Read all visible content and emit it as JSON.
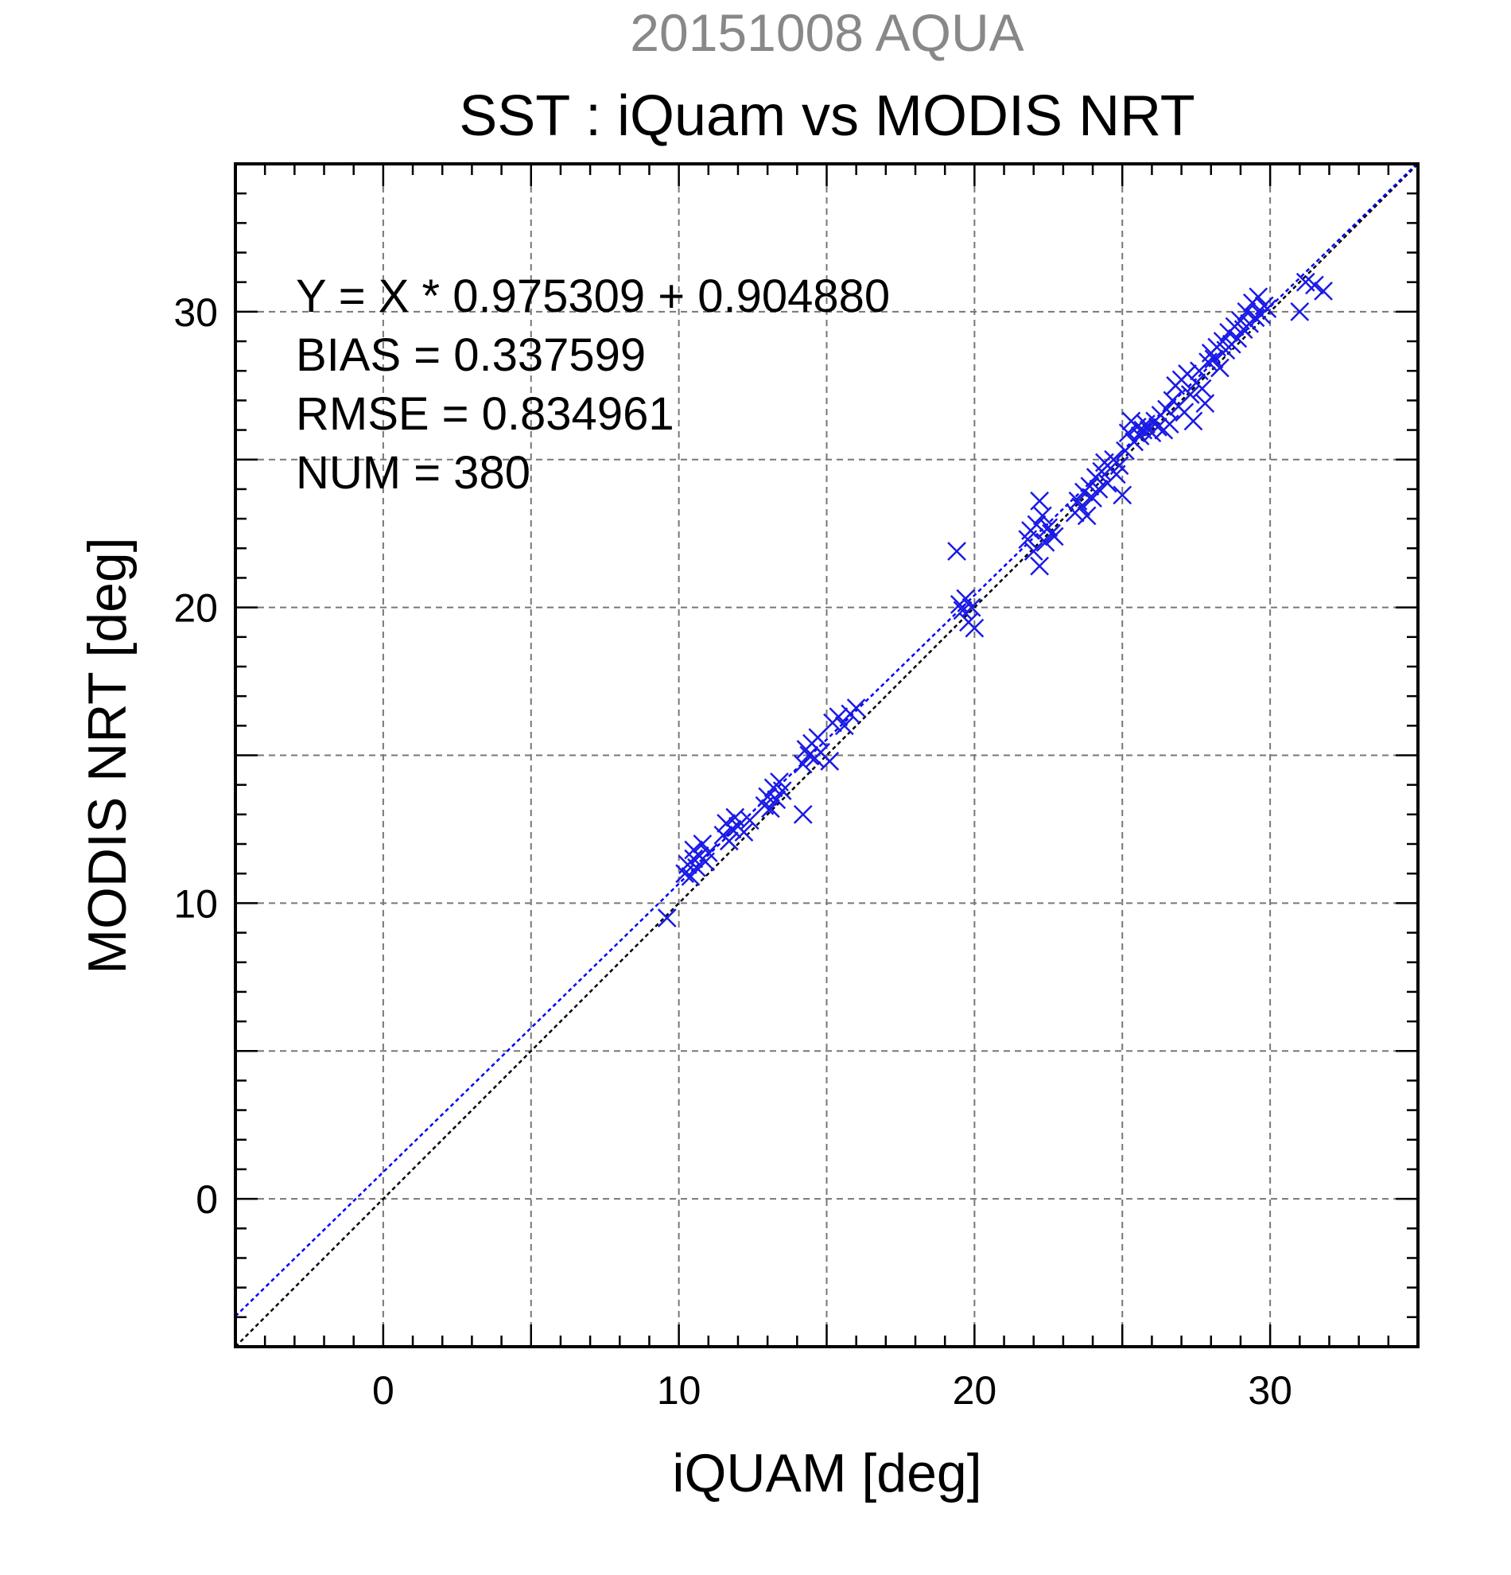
{
  "supertitle": "20151008 AQUA",
  "colors": {
    "super_title": "#888888",
    "points": "#1a1ae6",
    "fit_line": "#0000ff",
    "identity_line": "#000000",
    "grid": "#777777"
  },
  "chart_data": {
    "type": "scatter",
    "title": "SST : iQuam vs MODIS NRT",
    "xlabel": "iQUAM [deg]",
    "ylabel": "MODIS NRT [deg]",
    "xlim": [
      -5,
      35
    ],
    "ylim": [
      -5,
      35
    ],
    "xticks": [
      0,
      10,
      20,
      30
    ],
    "yticks": [
      0,
      10,
      20,
      30
    ],
    "grid": true,
    "marker": "x",
    "annotations": [
      "Y = X * 0.975309 + 0.904880",
      "BIAS = 0.337599",
      "RMSE = 0.834961",
      "NUM = 380"
    ],
    "fit": {
      "slope": 0.975309,
      "intercept": 0.90488
    },
    "identity_line": true,
    "points": [
      [
        9.6,
        9.5
      ],
      [
        10.2,
        11.0
      ],
      [
        10.3,
        11.3
      ],
      [
        10.4,
        10.9
      ],
      [
        10.5,
        11.5
      ],
      [
        10.5,
        11.8
      ],
      [
        10.6,
        11.2
      ],
      [
        10.7,
        11.6
      ],
      [
        10.8,
        12.0
      ],
      [
        10.9,
        11.4
      ],
      [
        11.0,
        11.7
      ],
      [
        11.5,
        12.3
      ],
      [
        11.6,
        12.7
      ],
      [
        11.7,
        12.1
      ],
      [
        11.8,
        12.5
      ],
      [
        11.9,
        12.9
      ],
      [
        12.0,
        12.6
      ],
      [
        12.2,
        12.4
      ],
      [
        12.4,
        12.8
      ],
      [
        12.9,
        13.3
      ],
      [
        13.0,
        13.6
      ],
      [
        13.1,
        13.2
      ],
      [
        13.2,
        13.9
      ],
      [
        13.3,
        13.5
      ],
      [
        13.4,
        14.1
      ],
      [
        13.5,
        13.8
      ],
      [
        14.2,
        14.7
      ],
      [
        14.3,
        15.2
      ],
      [
        14.4,
        15.0
      ],
      [
        14.5,
        15.4
      ],
      [
        14.6,
        14.9
      ],
      [
        14.7,
        15.6
      ],
      [
        14.8,
        15.1
      ],
      [
        14.2,
        13.0
      ],
      [
        15.1,
        14.8
      ],
      [
        15.2,
        16.1
      ],
      [
        15.4,
        16.3
      ],
      [
        15.6,
        16.0
      ],
      [
        15.8,
        16.4
      ],
      [
        16.0,
        16.6
      ],
      [
        19.4,
        21.9
      ],
      [
        19.5,
        20.1
      ],
      [
        19.6,
        19.9
      ],
      [
        19.7,
        20.3
      ],
      [
        19.8,
        19.5
      ],
      [
        19.9,
        20.0
      ],
      [
        20.0,
        19.3
      ],
      [
        21.8,
        22.3
      ],
      [
        21.9,
        22.6
      ],
      [
        22.0,
        21.9
      ],
      [
        22.1,
        22.8
      ],
      [
        22.2,
        23.6
      ],
      [
        22.2,
        21.4
      ],
      [
        22.3,
        23.1
      ],
      [
        22.4,
        22.2
      ],
      [
        22.5,
        22.7
      ],
      [
        22.6,
        22.5
      ],
      [
        22.7,
        22.4
      ],
      [
        23.4,
        23.2
      ],
      [
        23.5,
        23.6
      ],
      [
        23.6,
        23.4
      ],
      [
        23.7,
        23.9
      ],
      [
        23.8,
        23.1
      ],
      [
        23.9,
        24.1
      ],
      [
        24.0,
        23.7
      ],
      [
        24.1,
        24.4
      ],
      [
        24.2,
        24.0
      ],
      [
        24.3,
        24.6
      ],
      [
        24.4,
        24.9
      ],
      [
        24.5,
        24.2
      ],
      [
        24.6,
        24.7
      ],
      [
        24.7,
        25.0
      ],
      [
        24.8,
        24.5
      ],
      [
        24.9,
        24.8
      ],
      [
        25.0,
        23.8
      ],
      [
        25.1,
        25.3
      ],
      [
        25.2,
        25.9
      ],
      [
        25.3,
        26.3
      ],
      [
        25.4,
        25.6
      ],
      [
        25.5,
        26.1
      ],
      [
        25.6,
        25.8
      ],
      [
        25.7,
        26.0
      ],
      [
        25.8,
        26.2
      ],
      [
        25.9,
        26.0
      ],
      [
        26.0,
        25.9
      ],
      [
        26.1,
        26.3
      ],
      [
        26.2,
        26.1
      ],
      [
        26.3,
        26.5
      ],
      [
        26.4,
        26.0
      ],
      [
        26.5,
        26.7
      ],
      [
        26.6,
        26.2
      ],
      [
        26.7,
        27.0
      ],
      [
        26.8,
        27.5
      ],
      [
        26.9,
        26.8
      ],
      [
        27.0,
        27.7
      ],
      [
        27.1,
        26.6
      ],
      [
        27.2,
        27.9
      ],
      [
        27.3,
        27.2
      ],
      [
        27.4,
        26.3
      ],
      [
        27.5,
        27.6
      ],
      [
        27.6,
        28.0
      ],
      [
        27.7,
        27.4
      ],
      [
        27.8,
        26.9
      ],
      [
        27.9,
        28.3
      ],
      [
        28.0,
        28.6
      ],
      [
        28.1,
        28.4
      ],
      [
        28.2,
        28.8
      ],
      [
        28.3,
        28.1
      ],
      [
        28.4,
        29.0
      ],
      [
        28.5,
        28.7
      ],
      [
        28.6,
        29.3
      ],
      [
        28.7,
        28.9
      ],
      [
        28.8,
        29.5
      ],
      [
        28.9,
        29.1
      ],
      [
        29.0,
        29.7
      ],
      [
        29.1,
        29.4
      ],
      [
        29.2,
        30.0
      ],
      [
        29.3,
        29.6
      ],
      [
        29.4,
        30.3
      ],
      [
        29.5,
        29.8
      ],
      [
        29.6,
        30.5
      ],
      [
        29.7,
        29.9
      ],
      [
        29.8,
        30.2
      ],
      [
        29.9,
        30.1
      ],
      [
        31.0,
        30.0
      ],
      [
        31.2,
        31.0
      ],
      [
        31.5,
        30.9
      ],
      [
        31.8,
        30.7
      ]
    ]
  }
}
